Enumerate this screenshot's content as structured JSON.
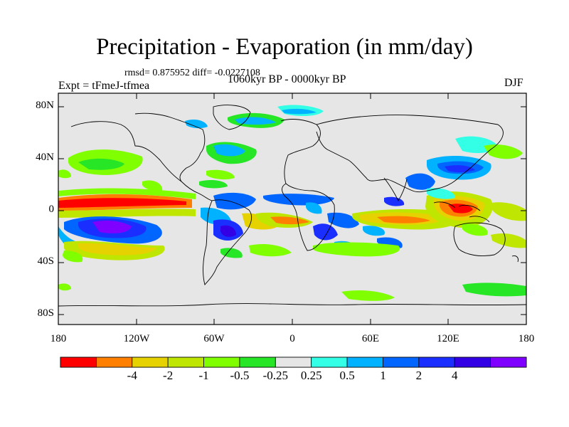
{
  "title": "Precipitation - Evaporation (in mm/day)",
  "stats": "rmsd= 0.875952 diff= -0.0227108",
  "expt": "Expt = tFmeJ-tfmea",
  "period": "1060kyr BP - 0000kyr BP",
  "season": "DJF",
  "lat_labels": [
    "80N",
    "40N",
    "0",
    "40S",
    "80S"
  ],
  "lon_labels": [
    "180",
    "120W",
    "60W",
    "0",
    "60E",
    "120E",
    "180"
  ],
  "colorbar": {
    "labels": [
      "-4",
      "-2",
      "-1",
      "-0.5",
      "-0.25",
      "0.25",
      "0.5",
      "1",
      "2",
      "4"
    ],
    "colors": [
      "#ff0000",
      "#ff8000",
      "#e6d200",
      "#bfe600",
      "#80ff00",
      "#26e626",
      "#e6e6e6",
      "#33ffe6",
      "#00b2ff",
      "#0066ff",
      "#1a2eff",
      "#3300e6",
      "#8000ff"
    ]
  }
}
